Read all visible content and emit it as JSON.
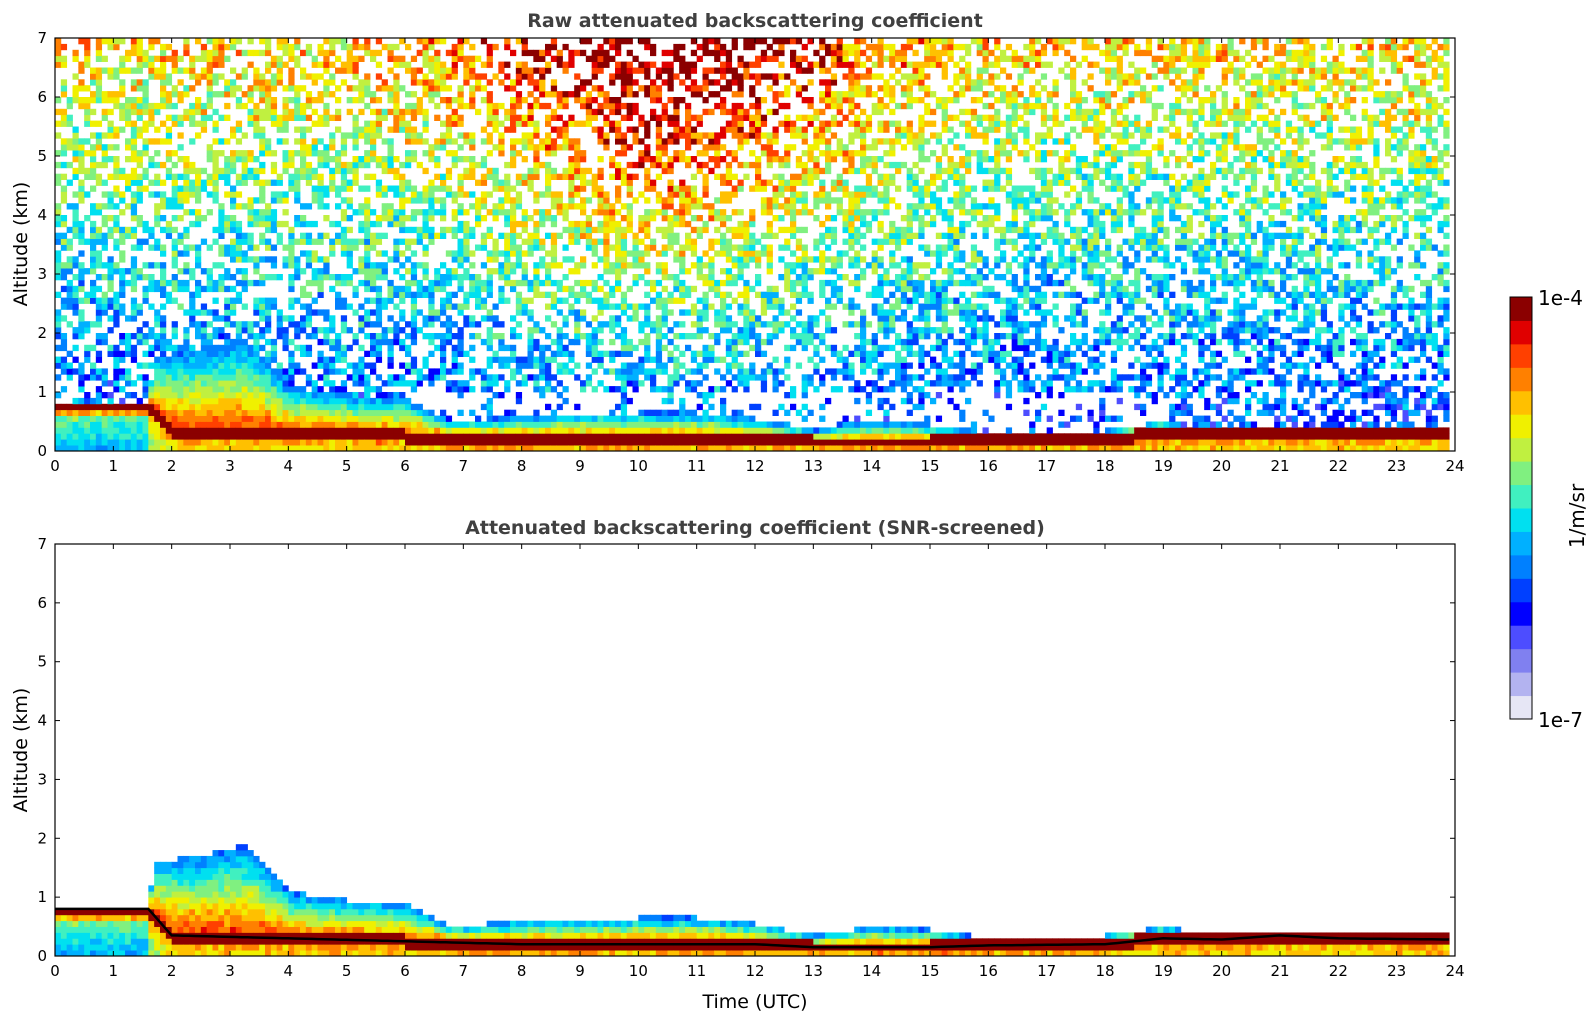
{
  "chart_data": [
    {
      "type": "heatmap",
      "title": "Raw attenuated backscattering coefficient",
      "xlabel": "",
      "ylabel": "Altitude (km)",
      "xlim": [
        0,
        24
      ],
      "ylim": [
        0,
        7
      ],
      "x_ticks": [
        "0",
        "1",
        "2",
        "3",
        "4",
        "5",
        "6",
        "7",
        "8",
        "9",
        "10",
        "11",
        "12",
        "13",
        "14",
        "15",
        "16",
        "17",
        "18",
        "19",
        "20",
        "21",
        "22",
        "23",
        "24"
      ],
      "y_ticks": [
        "0",
        "1",
        "2",
        "3",
        "4",
        "5",
        "6",
        "7"
      ],
      "field": "raw",
      "boundary_layer_top_km": {
        "x": [
          0,
          1.6,
          1.7,
          2.5,
          3.3,
          4.0,
          5.0,
          6.0,
          6.8,
          8,
          10,
          11,
          12,
          13,
          14,
          15,
          16,
          18,
          19,
          20,
          21,
          22,
          23,
          24
        ],
        "y": [
          0.82,
          0.82,
          1.6,
          1.7,
          1.9,
          1.1,
          0.95,
          0.9,
          0.5,
          0.6,
          0.65,
          0.65,
          0.55,
          0.35,
          0.5,
          0.45,
          0.3,
          0.35,
          0.5,
          0.35,
          0.4,
          0.35,
          0.38,
          0.38
        ]
      },
      "aerosol_layer_km": {
        "x": [
          0,
          1.6,
          2,
          4,
          6,
          8,
          10,
          12,
          13,
          15,
          16,
          18,
          19,
          20,
          21,
          22,
          23.9
        ],
        "y": [
          0.8,
          0.8,
          0.35,
          0.3,
          0.25,
          0.2,
          0.2,
          0.2,
          0.15,
          0.15,
          0.18,
          0.2,
          0.3,
          0.28,
          0.35,
          0.3,
          0.28
        ]
      }
    },
    {
      "type": "heatmap",
      "title": "Attenuated backscattering coefficient (SNR-screened)",
      "xlabel": "Time (UTC)",
      "ylabel": "Altitude (km)",
      "xlim": [
        0,
        24
      ],
      "ylim": [
        0,
        7
      ],
      "x_ticks": [
        "0",
        "1",
        "2",
        "3",
        "4",
        "5",
        "6",
        "7",
        "8",
        "9",
        "10",
        "11",
        "12",
        "13",
        "14",
        "15",
        "16",
        "17",
        "18",
        "19",
        "20",
        "21",
        "22",
        "23",
        "24"
      ],
      "y_ticks": [
        "0",
        "1",
        "2",
        "3",
        "4",
        "5",
        "6",
        "7"
      ],
      "field": "screened"
    }
  ],
  "colorbar": {
    "label": "1/m/sr",
    "max_label": "1e-4",
    "min_label": "1e-7",
    "colors": [
      "#e6e6f5",
      "#b3b3f0",
      "#8080f0",
      "#4d4dff",
      "#0000ff",
      "#0040ff",
      "#0080ff",
      "#00b0ff",
      "#00e0f0",
      "#40f0c0",
      "#80f080",
      "#c0f040",
      "#f0f000",
      "#ffc000",
      "#ff8000",
      "#ff4000",
      "#e00000",
      "#8b0000"
    ]
  }
}
